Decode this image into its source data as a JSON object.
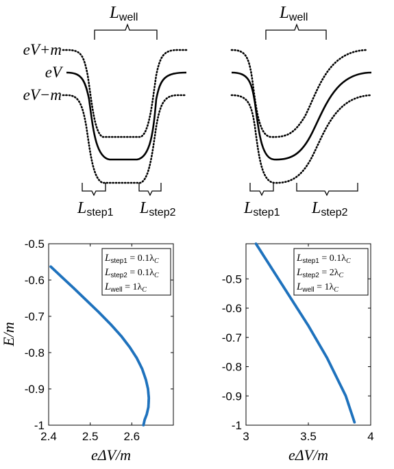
{
  "profiles": {
    "labels": {
      "upper": "eV+m",
      "middle": "eV",
      "lower": "eV−m",
      "well": "well",
      "step1": "step1",
      "step2": "step2",
      "L": "L"
    }
  },
  "chart_data": [
    {
      "type": "scatter",
      "title": "",
      "xlabel": "eΔV/m",
      "ylabel": "E/m",
      "xlim": [
        2.4,
        2.7
      ],
      "ylim": [
        -1,
        -0.5
      ],
      "xticks": [
        "2.4",
        "2.5",
        "2.6"
      ],
      "yticks": [
        "-1",
        "-0.9",
        "-0.8",
        "-0.7",
        "-0.6",
        "-0.5"
      ],
      "legend_position": "top-right",
      "legend": [
        {
          "text": "= 0.1λ",
          "sub": "step1"
        },
        {
          "text": "= 0.1λ",
          "sub": "step2"
        },
        {
          "text": "= 1λ",
          "sub": "well"
        }
      ],
      "series": [
        {
          "color": "#1f72bd",
          "x": [
            2.405,
            2.43,
            2.46,
            2.49,
            2.52,
            2.55,
            2.575,
            2.595,
            2.612,
            2.625,
            2.634,
            2.639,
            2.641,
            2.64,
            2.636,
            2.631,
            2.628
          ],
          "y": [
            -0.563,
            -0.59,
            -0.622,
            -0.655,
            -0.688,
            -0.723,
            -0.755,
            -0.785,
            -0.815,
            -0.845,
            -0.875,
            -0.9,
            -0.925,
            -0.95,
            -0.97,
            -0.985,
            -1.0
          ]
        }
      ]
    },
    {
      "type": "scatter",
      "title": "",
      "xlabel": "eΔV/m",
      "ylabel": "",
      "xlim": [
        3,
        4
      ],
      "ylim": [
        -1,
        -0.38
      ],
      "xticks": [
        "3",
        "3.5",
        "4"
      ],
      "yticks": [
        "-1",
        "-0.9",
        "-0.8",
        "-0.7",
        "-0.6",
        "-0.5"
      ],
      "legend_position": "top-right",
      "legend": [
        {
          "text": "= 0.1λ",
          "sub": "step1"
        },
        {
          "text": "= 2λ",
          "sub": "step2"
        },
        {
          "text": "= 1λ",
          "sub": "well"
        }
      ],
      "series": [
        {
          "color": "#1f72bd",
          "x": [
            3.08,
            3.2,
            3.35,
            3.5,
            3.65,
            3.8,
            3.87
          ],
          "y": [
            -0.38,
            -0.46,
            -0.56,
            -0.66,
            -0.77,
            -0.9,
            -0.99
          ]
        }
      ]
    }
  ]
}
